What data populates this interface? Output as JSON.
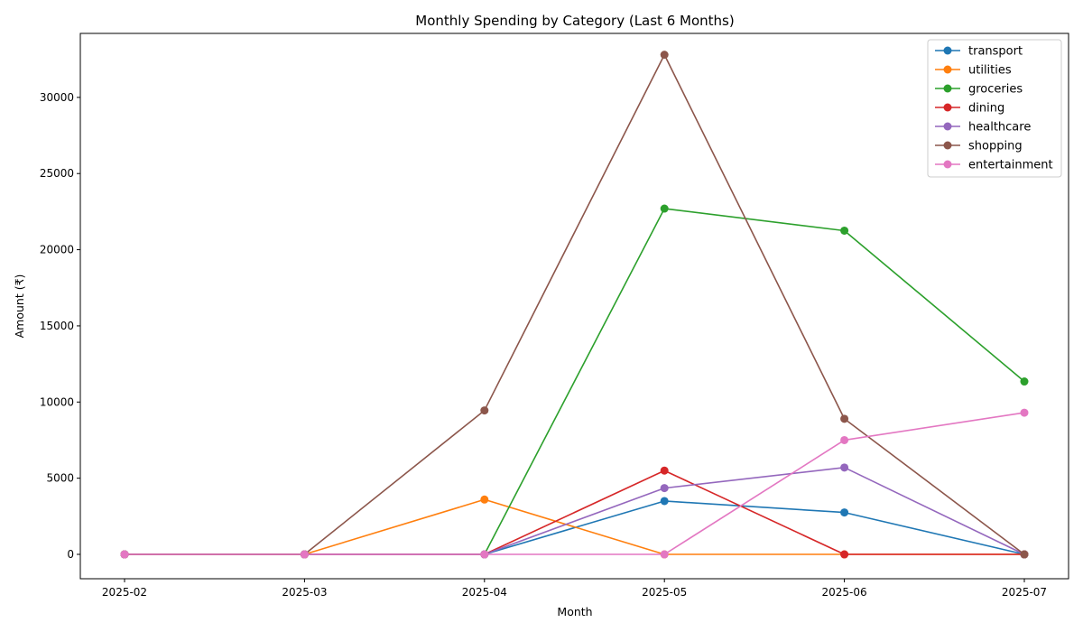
{
  "chart_data": {
    "type": "line",
    "title": "Monthly Spending by Category (Last 6 Months)",
    "xlabel": "Month",
    "ylabel": "Amount (₹)",
    "categories": [
      "2025-02",
      "2025-03",
      "2025-04",
      "2025-05",
      "2025-06",
      "2025-07"
    ],
    "ylim": [
      -1600,
      34200
    ],
    "yticks": [
      0,
      5000,
      10000,
      15000,
      20000,
      25000,
      30000
    ],
    "legend_position": "top-right",
    "grid": false,
    "series": [
      {
        "name": "transport",
        "color": "#1f77b4",
        "values": [
          0,
          0,
          0,
          3500,
          2750,
          0
        ]
      },
      {
        "name": "utilities",
        "color": "#ff7f0e",
        "values": [
          0,
          0,
          3600,
          0,
          0,
          0
        ]
      },
      {
        "name": "groceries",
        "color": "#2ca02c",
        "values": [
          0,
          0,
          0,
          22700,
          21250,
          11350
        ]
      },
      {
        "name": "dining",
        "color": "#d62728",
        "values": [
          0,
          0,
          0,
          5500,
          0,
          0
        ]
      },
      {
        "name": "healthcare",
        "color": "#9467bd",
        "values": [
          0,
          0,
          0,
          4350,
          5700,
          0
        ]
      },
      {
        "name": "shopping",
        "color": "#8c564b",
        "values": [
          0,
          0,
          9450,
          32800,
          8900,
          0
        ]
      },
      {
        "name": "entertainment",
        "color": "#e377c2",
        "values": [
          0,
          0,
          0,
          0,
          7500,
          9300
        ]
      }
    ]
  }
}
